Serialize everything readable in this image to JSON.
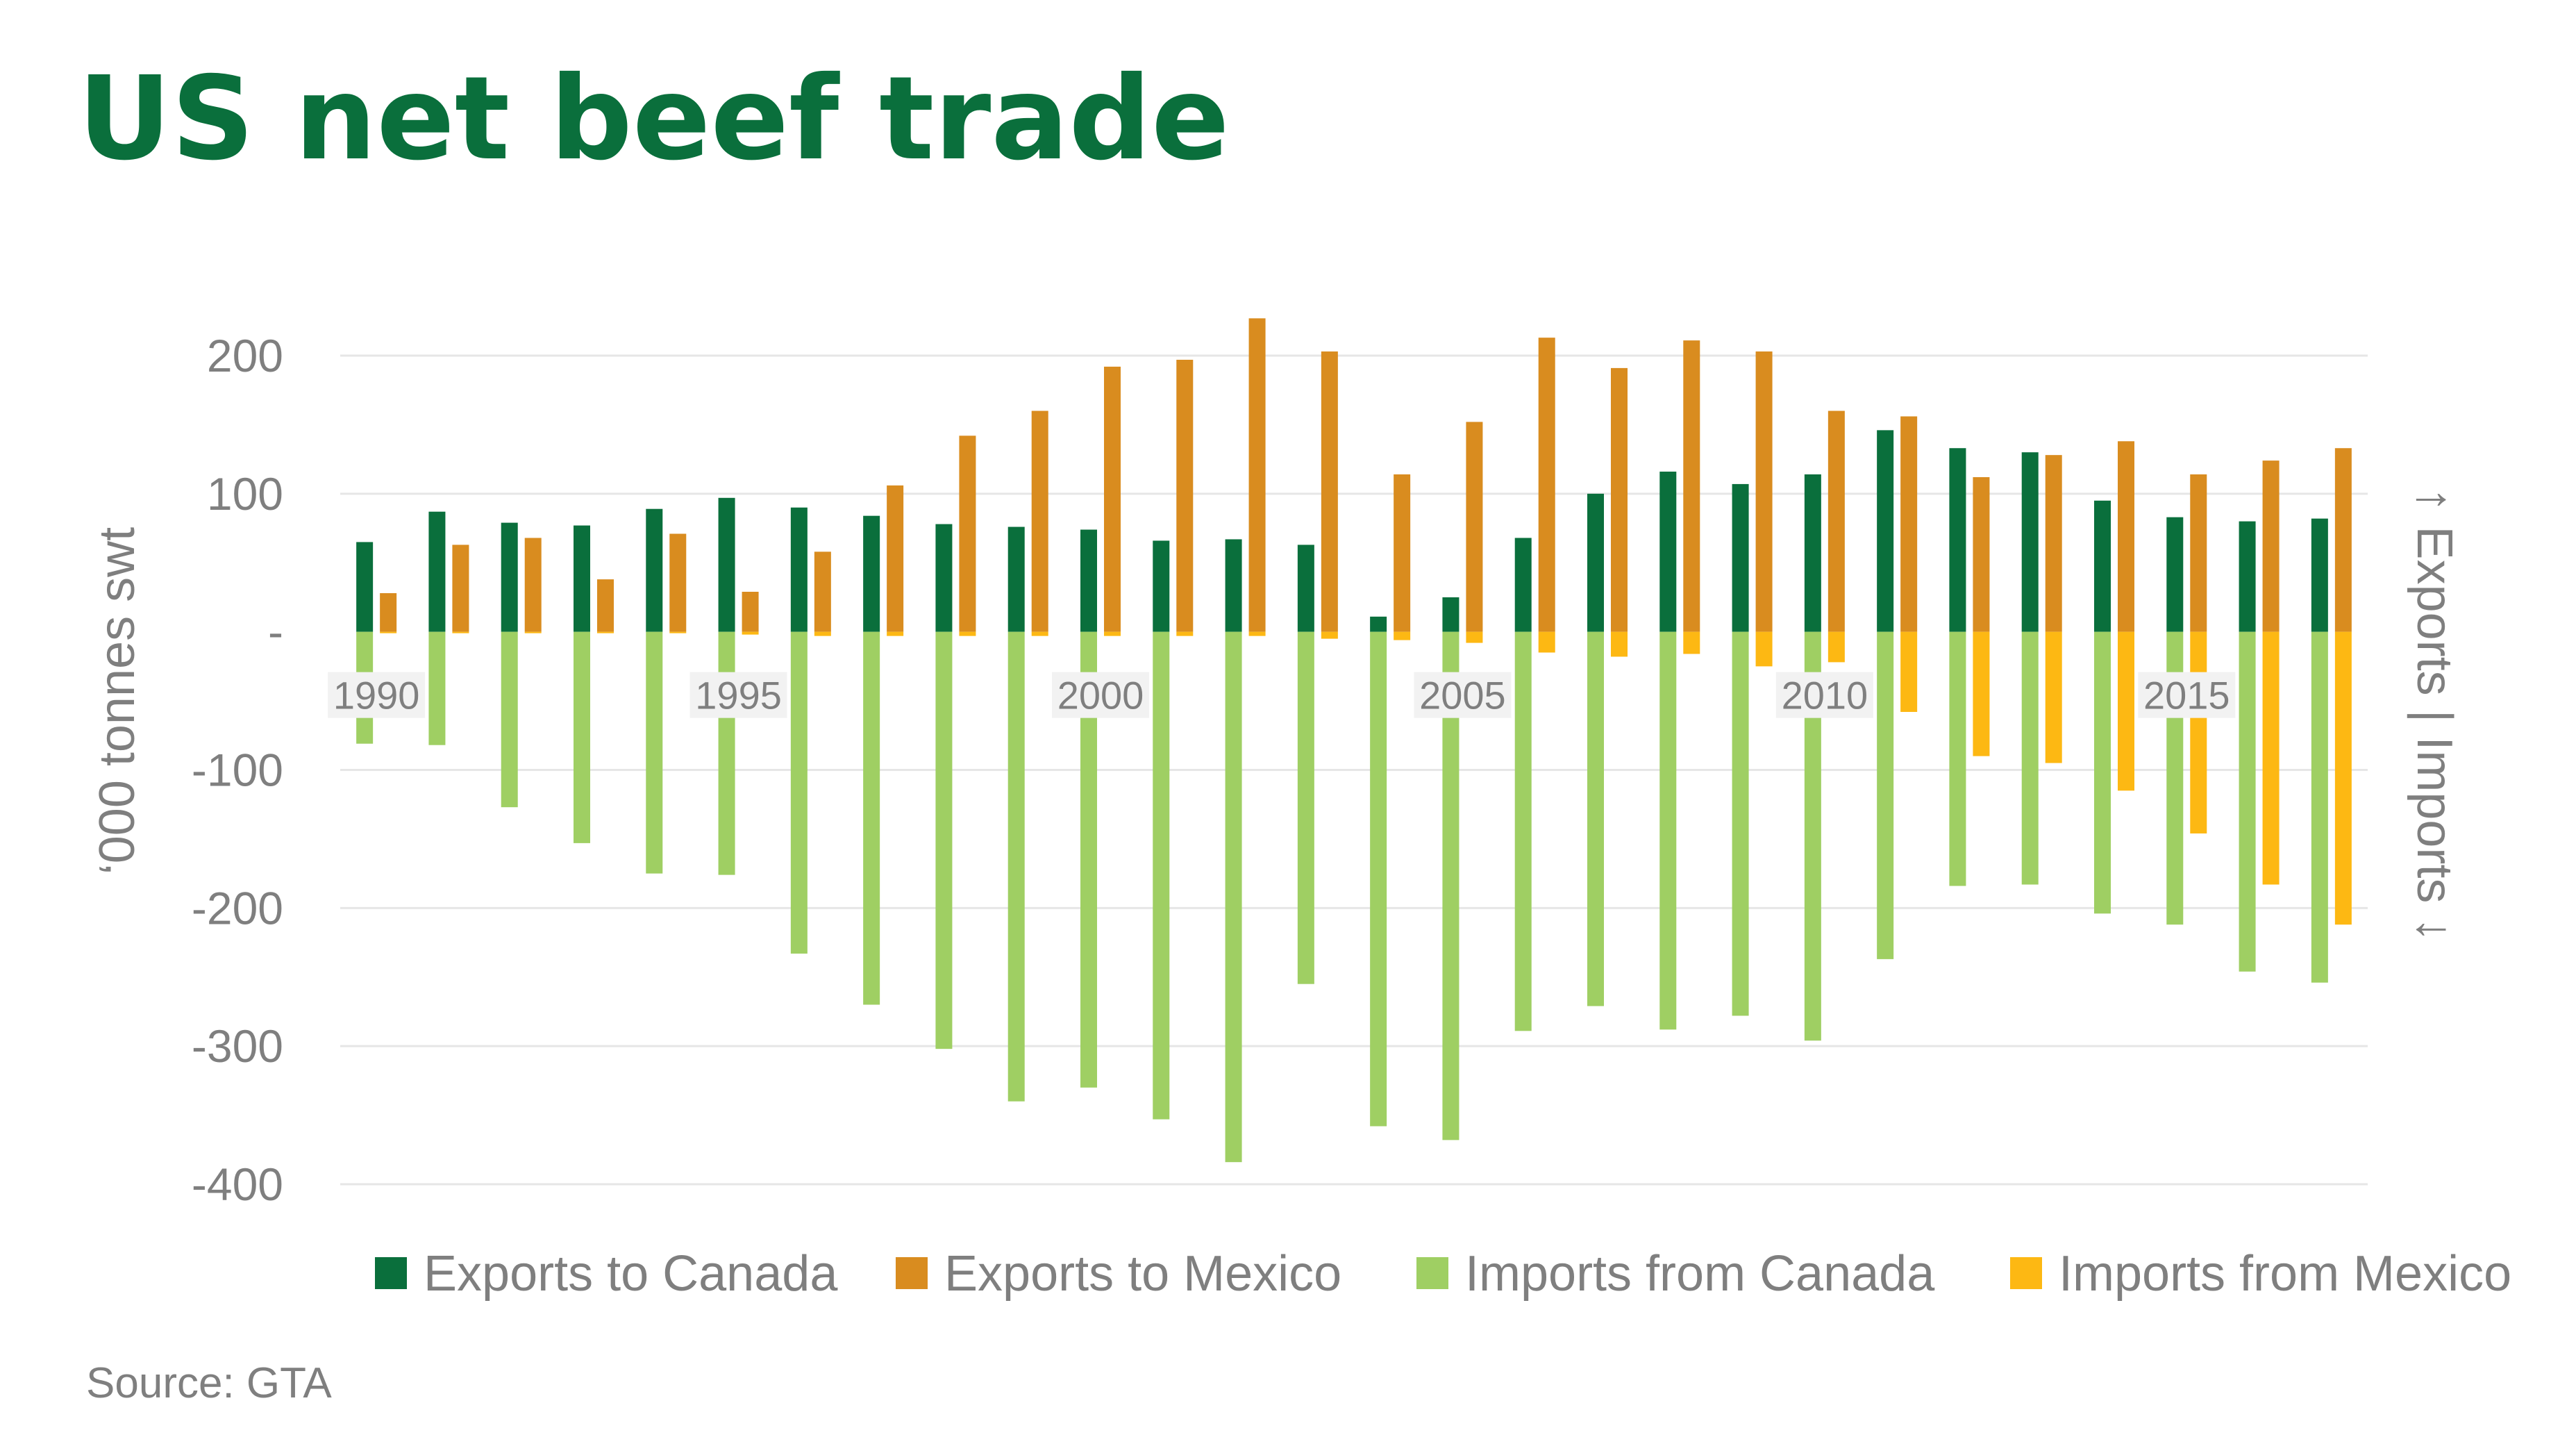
{
  "title": "US net beef trade",
  "source": "Source: GTA",
  "chart_data": {
    "type": "bar",
    "title": "US net beef trade",
    "ylabel": "‘000 tonnes swt",
    "secondary_axis_label": "↑ Exports | Imports ↓",
    "ylim": [
      -400,
      200
    ],
    "yticks": [
      200,
      100,
      0,
      -100,
      -200,
      -300,
      -400
    ],
    "ytick_labels": [
      "200",
      "100",
      "-",
      "-100",
      "-200",
      "-300",
      "-400"
    ],
    "grid": true,
    "legend_position": "bottom",
    "x": [
      1990,
      1991,
      1992,
      1993,
      1994,
      1995,
      1996,
      1997,
      1998,
      1999,
      2000,
      2001,
      2002,
      2003,
      2004,
      2005,
      2006,
      2007,
      2008,
      2009,
      2010,
      2011,
      2012,
      2013,
      2014,
      2015,
      2016,
      2017
    ],
    "xtick_labels": [
      "1990",
      "1995",
      "2000",
      "2005",
      "2010",
      "2015"
    ],
    "xtick_years": [
      1990,
      1995,
      2000,
      2005,
      2010,
      2015
    ],
    "series": [
      {
        "name": "Exports to Canada",
        "color": "#0a6f3c",
        "values": [
          65,
          87,
          79,
          77,
          89,
          97,
          90,
          84,
          78,
          76,
          74,
          66,
          67,
          63,
          11,
          25,
          68,
          100,
          116,
          107,
          114,
          146,
          133,
          130,
          95,
          83,
          80,
          82
        ]
      },
      {
        "name": "Exports to Mexico",
        "color": "#d98c1f",
        "values": [
          28,
          63,
          68,
          38,
          71,
          29,
          58,
          106,
          142,
          160,
          192,
          197,
          227,
          203,
          114,
          152,
          213,
          191,
          211,
          203,
          160,
          156,
          112,
          128,
          138,
          114,
          124,
          133
        ]
      },
      {
        "name": "Imports from Canada",
        "color": "#9fcf63",
        "values": [
          -81,
          -82,
          -127,
          -153,
          -175,
          -176,
          -233,
          -270,
          -302,
          -340,
          -330,
          -353,
          -384,
          -255,
          -358,
          -368,
          -289,
          -271,
          -288,
          -278,
          -296,
          -237,
          -184,
          -183,
          -204,
          -212,
          -246,
          -254
        ]
      },
      {
        "name": "Imports from Mexico",
        "color": "#fdb813",
        "values": [
          -1,
          -1,
          -1,
          -1,
          -1,
          -2,
          -3,
          -3,
          -3,
          -3,
          -3,
          -3,
          -3,
          -5,
          -6,
          -8,
          -15,
          -18,
          -16,
          -25,
          -22,
          -58,
          -90,
          -95,
          -115,
          -146,
          -183,
          -212
        ]
      }
    ]
  }
}
